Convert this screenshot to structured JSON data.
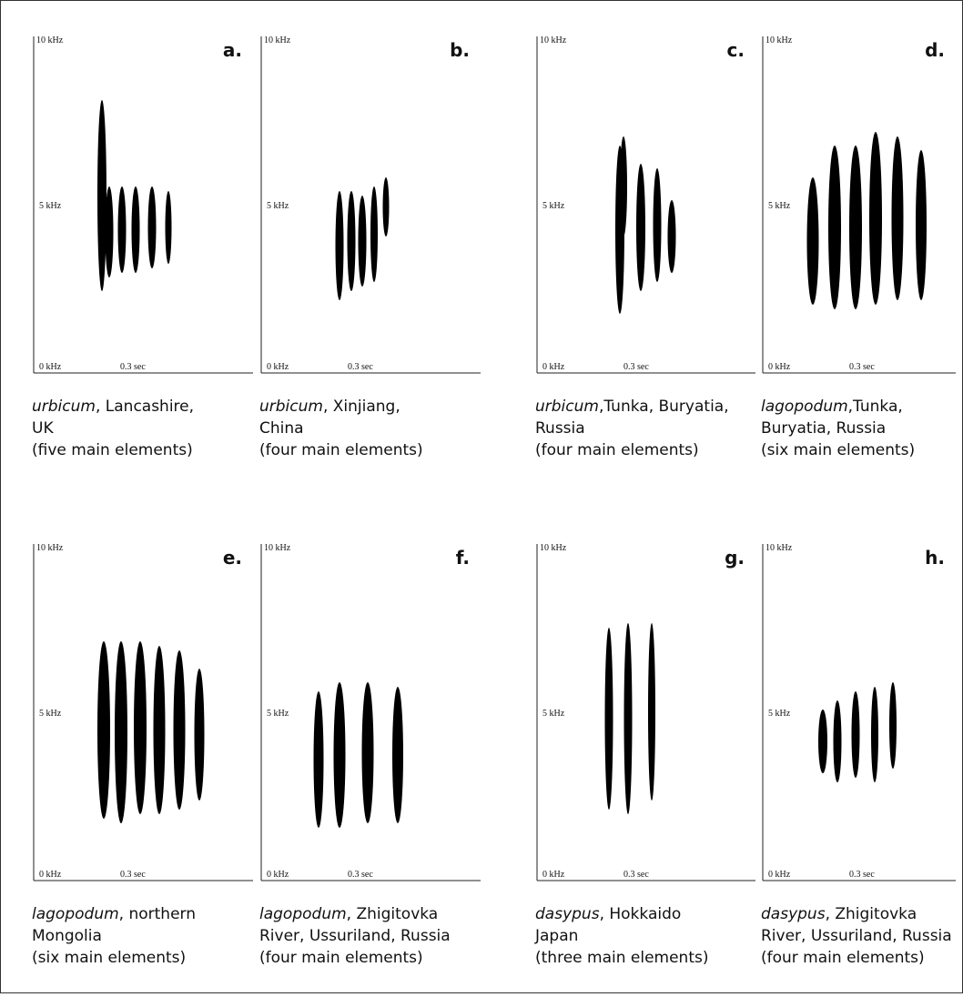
{
  "panels": [
    {
      "letter": "a.",
      "axis": {
        "top": "10 kHz",
        "mid": "5 kHz",
        "bottom": "0 kHz",
        "time": "0.3 sec"
      },
      "species": "urbicum",
      "place": ", Lancashire,",
      "line2": "UK",
      "line3": "(five main elements)"
    },
    {
      "letter": "b.",
      "axis": {
        "top": "10 kHz",
        "mid": "5 kHz",
        "bottom": "0 kHz",
        "time": "0.3 sec"
      },
      "species": "urbicum",
      "place": ", Xinjiang,",
      "line2": "China",
      "line3": "(four main elements)"
    },
    {
      "letter": "c.",
      "axis": {
        "top": "10 kHz",
        "mid": "5 kHz",
        "bottom": "0 kHz",
        "time": "0.3 sec"
      },
      "species": "urbicum",
      "place": ",Tunka, Buryatia,",
      "line2": "Russia",
      "line3": "(four main elements)"
    },
    {
      "letter": "d.",
      "axis": {
        "top": "10 kHz",
        "mid": "5 kHz",
        "bottom": "0 kHz",
        "time": "0.3 sec"
      },
      "species": "lagopodum",
      "place": ",Tunka,",
      "line2": "Buryatia, Russia",
      "line3": "(six main elements)"
    },
    {
      "letter": "e.",
      "axis": {
        "top": "10 kHz",
        "mid": "5 kHz",
        "bottom": "0 kHz",
        "time": "0.3 sec"
      },
      "species": "lagopodum",
      "place": ", northern",
      "line2": "Mongolia",
      "line3": "(six main elements)"
    },
    {
      "letter": "f.",
      "axis": {
        "top": "10 kHz",
        "mid": "5 kHz",
        "bottom": "0 kHz",
        "time": "0.3 sec"
      },
      "species": "lagopodum",
      "place": ", Zhigitovka",
      "line2": "River, Ussuriland, Russia",
      "line3": "(four main elements)"
    },
    {
      "letter": "g.",
      "axis": {
        "top": "10 kHz",
        "mid": "5 kHz",
        "bottom": "0 kHz",
        "time": "0.3 sec"
      },
      "species": "dasypus",
      "place": ", Hokkaido",
      "line2": "Japan",
      "line3": "(three main elements)"
    },
    {
      "letter": "h.",
      "axis": {
        "top": "10 kHz",
        "mid": "5 kHz",
        "bottom": "0 kHz",
        "time": "0.3 sec"
      },
      "species": "dasypus",
      "place": ", Zhigitovka",
      "line2": "River, Ussuriland, Russia",
      "line3": "(four main elements)"
    }
  ]
}
